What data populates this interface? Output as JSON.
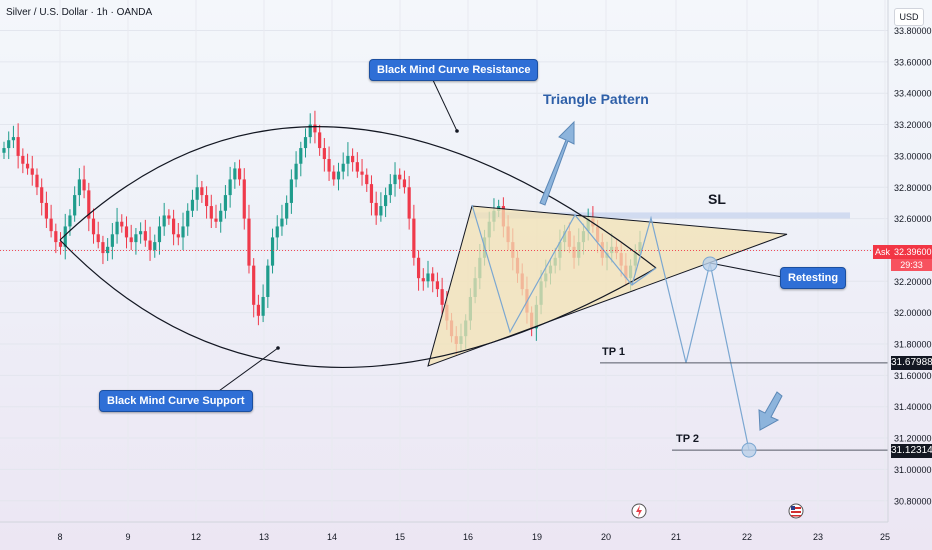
{
  "header": {
    "symbol_title": "Silver / U.S. Dollar · 1h · OANDA",
    "currency_badge": "USD"
  },
  "colors": {
    "up_candle": "#1f9c8c",
    "down_candle": "#ef3a4b",
    "triangle_fill": "#f3e2b3",
    "curve": "#131722",
    "projection": "#7ba7d1",
    "label_bg": "#2f6fd6",
    "ask": "#f23645",
    "sl_band": "#c9d6ee"
  },
  "annotations": {
    "resistance_label": "Black Mind Curve Resistance",
    "support_label": "Black Mind Curve  Support",
    "pattern_label": "Triangle Pattern",
    "sl_label": "SL",
    "retesting_label": "Retesting",
    "tp1_label": "TP 1",
    "tp2_label": "TP 2"
  },
  "price_tags": {
    "ask_label": "Ask",
    "ask_price": "32.39600",
    "countdown": "29:33",
    "tp1_price": "31.67988",
    "tp2_price": "31.12314"
  },
  "chart_data": {
    "type": "candlestick",
    "ylim": [
      30.7,
      33.9
    ],
    "y_ticks": [
      "33.80000",
      "33.60000",
      "33.40000",
      "33.20000",
      "33.00000",
      "32.80000",
      "32.60000",
      "32.40000",
      "32.20000",
      "32.00000",
      "31.80000",
      "31.60000",
      "31.40000",
      "31.20000",
      "31.00000",
      "30.80000"
    ],
    "x_ticks": [
      "8",
      "9",
      "12",
      "13",
      "14",
      "15",
      "16",
      "19",
      "20",
      "21",
      "22",
      "23",
      "25"
    ],
    "series": [
      {
        "values": [
          33.05,
          33.1,
          33.12,
          33.0,
          32.95,
          32.92,
          32.88,
          32.8,
          32.7,
          32.6,
          32.52,
          32.45,
          32.42,
          32.55,
          32.62,
          32.75,
          32.85,
          32.78,
          32.6,
          32.5,
          32.45,
          32.38,
          32.42,
          32.5,
          32.58,
          32.55,
          32.48,
          32.45,
          32.5,
          32.52,
          32.46,
          32.4,
          32.45,
          32.55,
          32.62,
          32.6,
          32.5,
          32.48,
          32.55,
          32.65,
          32.72,
          32.8,
          32.75,
          32.68,
          32.6,
          32.58,
          32.65,
          32.75,
          32.85,
          32.92,
          32.85,
          32.6,
          32.3,
          32.05,
          31.98,
          32.1,
          32.3,
          32.48,
          32.55,
          32.6,
          32.7,
          32.85,
          32.95,
          33.05,
          33.12,
          33.2,
          33.15,
          33.05,
          32.98,
          32.9,
          32.85,
          32.9,
          32.95,
          33.0,
          32.96,
          32.9,
          32.88,
          32.82,
          32.7,
          32.62,
          32.68,
          32.75,
          32.82,
          32.88,
          32.85,
          32.8,
          32.6,
          32.35,
          32.22,
          32.2,
          32.25,
          32.2,
          32.15,
          32.05,
          31.95,
          31.85,
          31.8,
          31.85,
          31.95,
          32.1,
          32.22,
          32.35,
          32.48,
          32.58,
          32.65,
          32.68,
          32.55,
          32.45,
          32.35,
          32.25,
          32.15,
          32.0,
          31.9,
          32.05,
          32.2,
          32.25,
          32.3,
          32.35,
          32.45,
          32.52,
          32.42,
          32.35,
          32.45,
          32.52,
          32.6,
          32.55,
          32.45,
          32.35,
          32.38,
          32.42,
          32.38,
          32.3,
          32.22,
          32.3,
          32.38,
          32.45
        ]
      }
    ],
    "triangle": {
      "apex_high": 32.62,
      "start_low": 31.66,
      "apex": 32.5
    },
    "sl_level": 32.62,
    "tp1": 31.67988,
    "tp2": 31.12314,
    "ask": 32.396
  }
}
